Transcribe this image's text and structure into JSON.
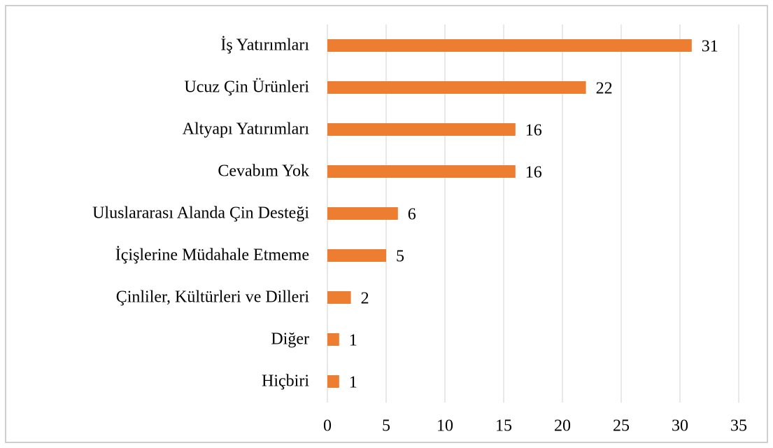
{
  "chart_data": {
    "type": "hbar",
    "categories": [
      "İş Yatırımları",
      "Ucuz Çin Ürünleri",
      "Altyapı Yatırımları",
      "Cevabım Yok",
      "Uluslararası Alanda Çin Desteği",
      "İçişlerine Müdahale Etmeme",
      "Çinliler, Kültürleri ve Dilleri",
      "Diğer",
      "Hiçbiri"
    ],
    "values": [
      31,
      22,
      16,
      16,
      6,
      5,
      2,
      1,
      1
    ],
    "color": "#ed7d31",
    "xlim": [
      0,
      35
    ],
    "xticks": [
      0,
      5,
      10,
      15,
      20,
      25,
      30,
      35
    ],
    "grid": true
  }
}
